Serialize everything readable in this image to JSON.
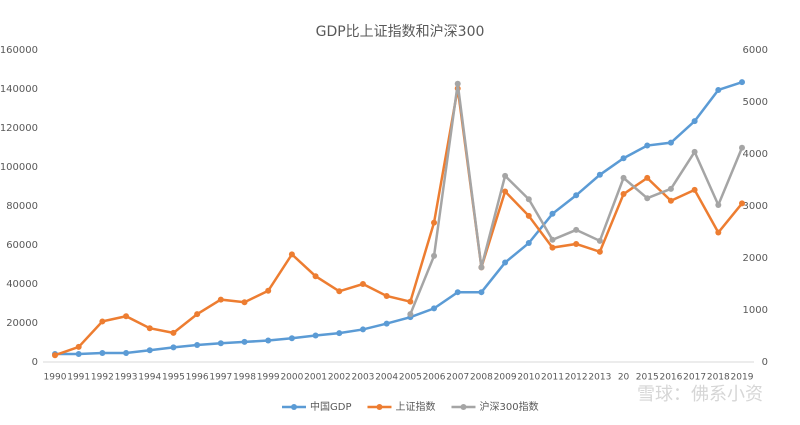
{
  "chart_data": {
    "type": "line",
    "title": "GDP比上证指数和沪深300",
    "categories": [
      "1990",
      "1991",
      "1992",
      "1993",
      "1994",
      "1995",
      "1996",
      "1997",
      "1998",
      "1999",
      "2000",
      "2001",
      "2002",
      "2003",
      "2004",
      "2005",
      "2006",
      "2007",
      "2008",
      "2009",
      "2010",
      "2011",
      "2012",
      "2013",
      "20",
      "2015",
      "2016",
      "2017",
      "2018",
      "2019"
    ],
    "series": [
      {
        "name": "中国GDP",
        "color": "#5b9bd5",
        "axis": "y",
        "values": [
          4100,
          4100,
          4600,
          4600,
          6000,
          7500,
          8700,
          9600,
          10300,
          11000,
          12200,
          13600,
          14800,
          16700,
          19700,
          23000,
          27500,
          35800,
          35800,
          51000,
          61000,
          76000,
          85500,
          96000,
          104500,
          111000,
          112500,
          123500,
          139500,
          143500
        ]
      },
      {
        "name": "上证指数",
        "color": "#ed7d31",
        "axis": "y2",
        "values": [
          130,
          290,
          780,
          880,
          650,
          560,
          920,
          1200,
          1150,
          1370,
          2070,
          1650,
          1360,
          1500,
          1270,
          1160,
          2680,
          5260,
          1820,
          3280,
          2810,
          2200,
          2270,
          2120,
          3230,
          3540,
          3100,
          3310,
          2490,
          3050
        ]
      },
      {
        "name": "沪深300指数",
        "color": "#a5a5a5",
        "axis": "y2",
        "values": [
          null,
          null,
          null,
          null,
          null,
          null,
          null,
          null,
          null,
          null,
          null,
          null,
          null,
          null,
          null,
          920,
          2040,
          5350,
          1820,
          3580,
          3130,
          2350,
          2540,
          2330,
          3540,
          3150,
          3330,
          4040,
          3020,
          4120
        ]
      }
    ],
    "ylim": [
      0,
      160000
    ],
    "yticks": [
      0,
      20000,
      40000,
      60000,
      80000,
      100000,
      120000,
      140000,
      160000
    ],
    "y2lim": [
      0,
      6000
    ],
    "y2ticks": [
      0,
      1000,
      2000,
      3000,
      4000,
      5000,
      6000
    ],
    "legend": "bottom",
    "watermark": "雪球：佛系小资"
  }
}
